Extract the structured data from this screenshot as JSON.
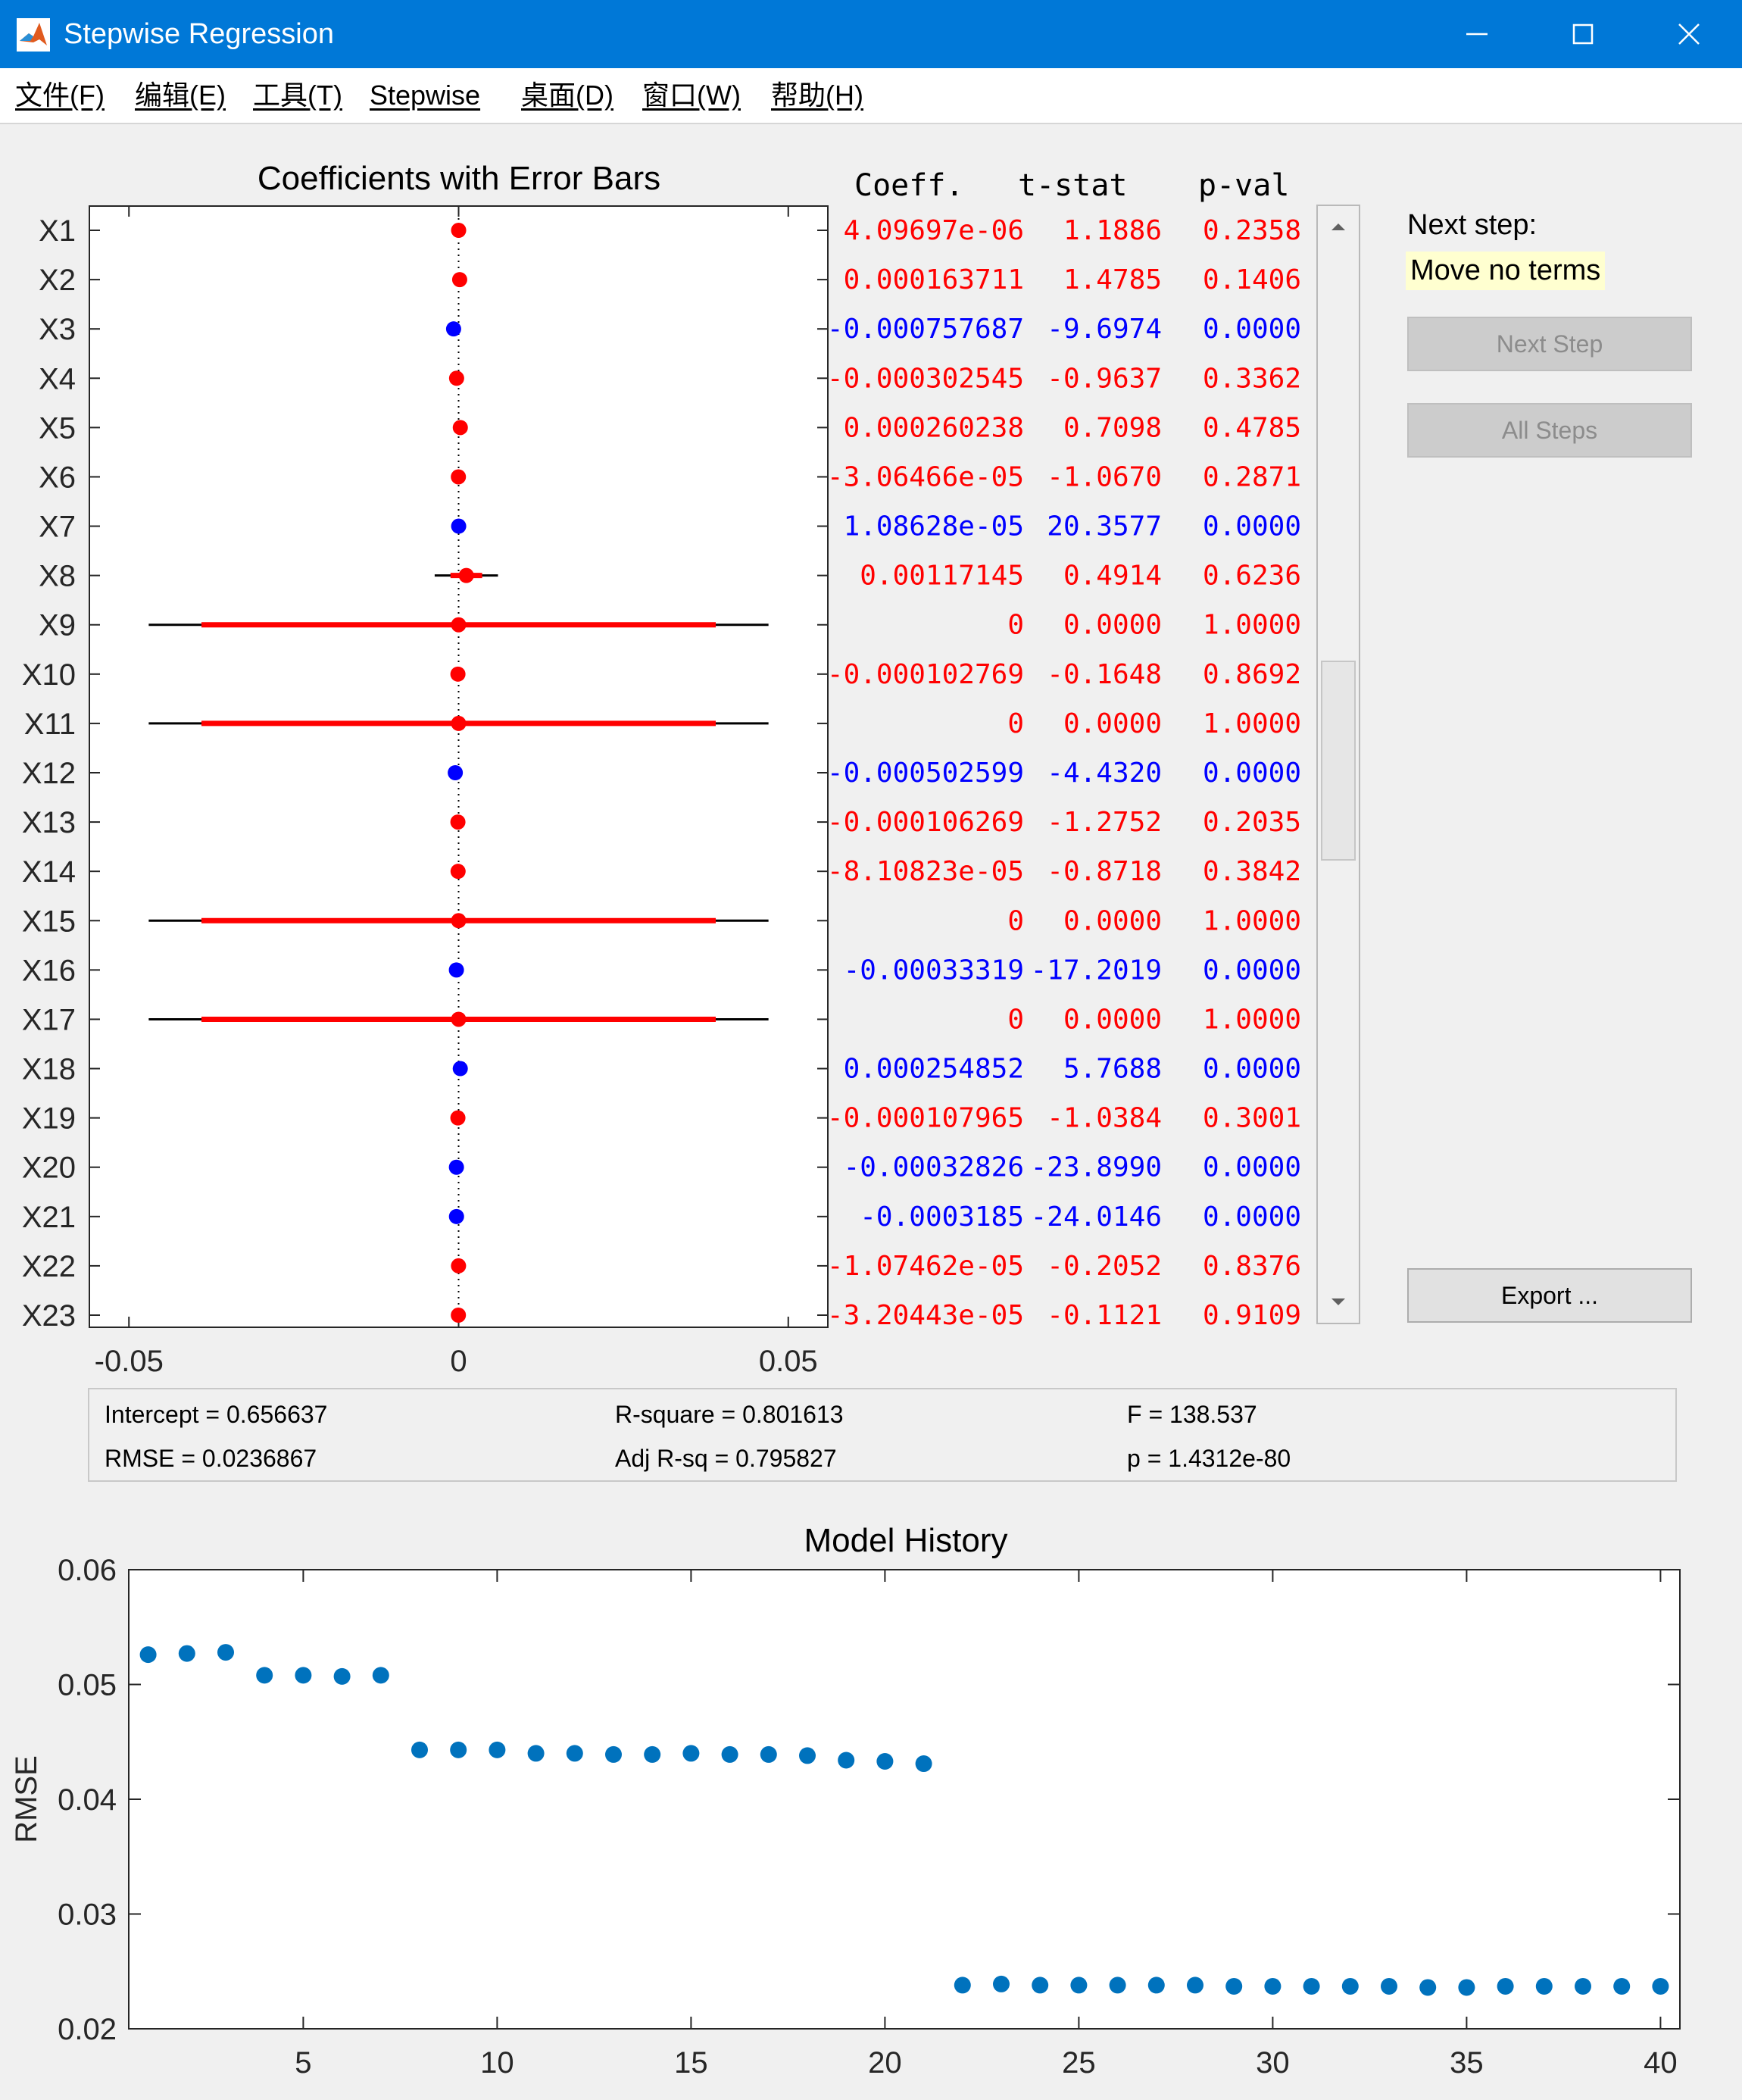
{
  "window": {
    "title": "Stepwise Regression",
    "accent_color": "#0078d7",
    "controls": [
      "minimize-icon",
      "maximize-icon",
      "close-icon"
    ]
  },
  "menu": [
    {
      "label": "文件(F)"
    },
    {
      "label": "编辑(E)"
    },
    {
      "label": "工具(T)"
    },
    {
      "label": "Stepwise"
    },
    {
      "label": "桌面(D)"
    },
    {
      "label": "窗口(W)"
    },
    {
      "label": "帮助(H)"
    }
  ],
  "table_headers": {
    "coeff": "Coeff.",
    "tstat": "t-stat",
    "pval": "p-val"
  },
  "colors": {
    "in_model": "#0000ff",
    "out_model": "#ff0000",
    "history_points": "#0072bd"
  },
  "right_panel": {
    "next_step_label": "Next step:",
    "next_step_value": "Move no terms",
    "next_step_button": "Next Step",
    "all_steps_button": "All Steps",
    "export_button": "Export ..."
  },
  "stats": {
    "intercept": "Intercept = 0.656637",
    "rmse": "RMSE = 0.0236867",
    "rsquare": "R-square = 0.801613",
    "adj_rsq": "Adj R-sq = 0.795827",
    "f": "F = 138.537",
    "p": "p = 1.4312e-80"
  },
  "chart_data": [
    {
      "type": "scatter",
      "title": "Coefficients with Error Bars",
      "xlim": [
        -0.056,
        0.056
      ],
      "x_ticks": [
        -0.05,
        0,
        0.05
      ],
      "x_tick_labels": [
        "-0.05",
        "0",
        "0.05"
      ],
      "rows": [
        {
          "label": "X1",
          "coeff": 4.09697e-06,
          "coeff_text": "4.09697e-06",
          "tstat": "1.1886",
          "pval": "0.2358",
          "in_model": false,
          "ci68": 0,
          "ci95": 0
        },
        {
          "label": "X2",
          "coeff": 0.000163711,
          "coeff_text": "0.000163711",
          "tstat": "1.4785",
          "pval": "0.1406",
          "in_model": false,
          "ci68": 0,
          "ci95": 0
        },
        {
          "label": "X3",
          "coeff": -0.000757687,
          "coeff_text": "-0.000757687",
          "tstat": "-9.6974",
          "pval": "0.0000",
          "in_model": true,
          "ci68": 0,
          "ci95": 0
        },
        {
          "label": "X4",
          "coeff": -0.000302545,
          "coeff_text": "-0.000302545",
          "tstat": "-0.9637",
          "pval": "0.3362",
          "in_model": false,
          "ci68": 0,
          "ci95": 0
        },
        {
          "label": "X5",
          "coeff": 0.000260238,
          "coeff_text": "0.000260238",
          "tstat": "0.7098",
          "pval": "0.4785",
          "in_model": false,
          "ci68": 0,
          "ci95": 0
        },
        {
          "label": "X6",
          "coeff": -3.06466e-05,
          "coeff_text": "-3.06466e-05",
          "tstat": "-1.0670",
          "pval": "0.2871",
          "in_model": false,
          "ci68": 0,
          "ci95": 0
        },
        {
          "label": "X7",
          "coeff": 1.08628e-05,
          "coeff_text": "1.08628e-05",
          "tstat": "20.3577",
          "pval": "0.0000",
          "in_model": true,
          "ci68": 0,
          "ci95": 0
        },
        {
          "label": "X8",
          "coeff": 0.00117145,
          "coeff_text": "0.00117145",
          "tstat": "0.4914",
          "pval": "0.6236",
          "in_model": false,
          "ci68": 0.0024,
          "ci95": 0.0048
        },
        {
          "label": "X9",
          "coeff": 0,
          "coeff_text": "0",
          "tstat": "0.0000",
          "pval": "1.0000",
          "in_model": false,
          "ci68": 0.039,
          "ci95": 0.047
        },
        {
          "label": "X10",
          "coeff": -0.000102769,
          "coeff_text": "-0.000102769",
          "tstat": "-0.1648",
          "pval": "0.8692",
          "in_model": false,
          "ci68": 0,
          "ci95": 0
        },
        {
          "label": "X11",
          "coeff": 0,
          "coeff_text": "0",
          "tstat": "0.0000",
          "pval": "1.0000",
          "in_model": false,
          "ci68": 0.039,
          "ci95": 0.047
        },
        {
          "label": "X12",
          "coeff": -0.000502599,
          "coeff_text": "-0.000502599",
          "tstat": "-4.4320",
          "pval": "0.0000",
          "in_model": true,
          "ci68": 0,
          "ci95": 0
        },
        {
          "label": "X13",
          "coeff": -0.000106269,
          "coeff_text": "-0.000106269",
          "tstat": "-1.2752",
          "pval": "0.2035",
          "in_model": false,
          "ci68": 0,
          "ci95": 0
        },
        {
          "label": "X14",
          "coeff": -8.10823e-05,
          "coeff_text": "-8.10823e-05",
          "tstat": "-0.8718",
          "pval": "0.3842",
          "in_model": false,
          "ci68": 0,
          "ci95": 0
        },
        {
          "label": "X15",
          "coeff": 0,
          "coeff_text": "0",
          "tstat": "0.0000",
          "pval": "1.0000",
          "in_model": false,
          "ci68": 0.039,
          "ci95": 0.047
        },
        {
          "label": "X16",
          "coeff": -0.00033319,
          "coeff_text": "-0.00033319",
          "tstat": "-17.2019",
          "pval": "0.0000",
          "in_model": true,
          "ci68": 0,
          "ci95": 0
        },
        {
          "label": "X17",
          "coeff": 0,
          "coeff_text": "0",
          "tstat": "0.0000",
          "pval": "1.0000",
          "in_model": false,
          "ci68": 0.039,
          "ci95": 0.047
        },
        {
          "label": "X18",
          "coeff": 0.000254852,
          "coeff_text": "0.000254852",
          "tstat": "5.7688",
          "pval": "0.0000",
          "in_model": true,
          "ci68": 0,
          "ci95": 0
        },
        {
          "label": "X19",
          "coeff": -0.000107965,
          "coeff_text": "-0.000107965",
          "tstat": "-1.0384",
          "pval": "0.3001",
          "in_model": false,
          "ci68": 0,
          "ci95": 0
        },
        {
          "label": "X20",
          "coeff": -0.00032826,
          "coeff_text": "-0.00032826",
          "tstat": "-23.8990",
          "pval": "0.0000",
          "in_model": true,
          "ci68": 0,
          "ci95": 0
        },
        {
          "label": "X21",
          "coeff": -0.0003185,
          "coeff_text": "-0.0003185",
          "tstat": "-24.0146",
          "pval": "0.0000",
          "in_model": true,
          "ci68": 0,
          "ci95": 0
        },
        {
          "label": "X22",
          "coeff": -1.07462e-05,
          "coeff_text": "-1.07462e-05",
          "tstat": "-0.2052",
          "pval": "0.8376",
          "in_model": false,
          "ci68": 0,
          "ci95": 0
        },
        {
          "label": "X23",
          "coeff": -3.20443e-05,
          "coeff_text": "-3.20443e-05",
          "tstat": "-0.1121",
          "pval": "0.9109",
          "in_model": false,
          "ci68": 0,
          "ci95": 0
        }
      ]
    },
    {
      "type": "scatter",
      "title": "Model History",
      "ylabel": "RMSE",
      "xlim": [
        0.5,
        40.5
      ],
      "ylim": [
        0.02,
        0.06
      ],
      "x_ticks": [
        5,
        10,
        15,
        20,
        25,
        30,
        35,
        40
      ],
      "y_ticks": [
        0.02,
        0.03,
        0.04,
        0.05,
        0.06
      ],
      "y_tick_labels": [
        "0.02",
        "0.03",
        "0.04",
        "0.05",
        "0.06"
      ],
      "x": [
        1,
        2,
        3,
        4,
        5,
        6,
        7,
        8,
        9,
        10,
        11,
        12,
        13,
        14,
        15,
        16,
        17,
        18,
        19,
        20,
        21,
        22,
        23,
        24,
        25,
        26,
        27,
        28,
        29,
        30,
        31,
        32,
        33,
        34,
        35,
        36,
        37,
        38,
        39,
        40
      ],
      "y": [
        0.0526,
        0.0527,
        0.0528,
        0.0508,
        0.0508,
        0.0507,
        0.0508,
        0.0443,
        0.0443,
        0.0443,
        0.044,
        0.044,
        0.0439,
        0.0439,
        0.044,
        0.0439,
        0.0439,
        0.0438,
        0.0434,
        0.0433,
        0.0431,
        0.0238,
        0.0239,
        0.0238,
        0.0238,
        0.0238,
        0.0238,
        0.0238,
        0.0237,
        0.0237,
        0.0237,
        0.0237,
        0.0237,
        0.0236,
        0.0236,
        0.0237,
        0.0237,
        0.0237,
        0.0237,
        0.0237
      ]
    }
  ]
}
